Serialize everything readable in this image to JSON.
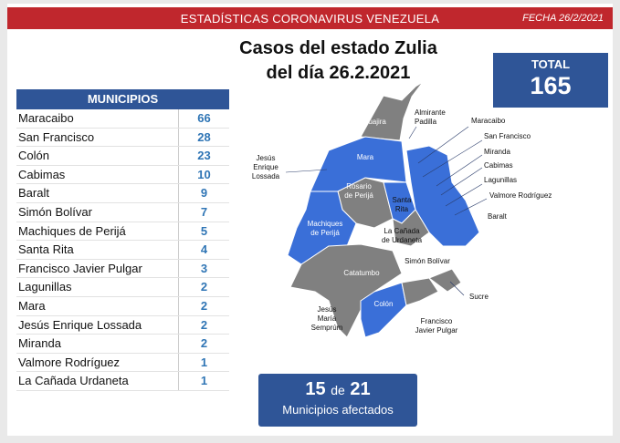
{
  "header": {
    "title": "ESTADÍSTICAS CORONAVIRUS VENEZUELA",
    "date": "FECHA 26/2/2021"
  },
  "main_title": [
    "Casos del estado Zulia",
    "del día 26.2.2021"
  ],
  "total": {
    "label": "TOTAL",
    "value": 165
  },
  "table": {
    "header": "MUNICIPIOS",
    "rows": [
      [
        "Maracaibo",
        66
      ],
      [
        "San Francisco",
        28
      ],
      [
        "Colón",
        23
      ],
      [
        "Cabimas",
        10
      ],
      [
        "Baralt",
        9
      ],
      [
        "Simón Bolívar",
        7
      ],
      [
        "Machiques de Perijá",
        5
      ],
      [
        "Santa Rita",
        4
      ],
      [
        "Francisco Javier Pulgar",
        3
      ],
      [
        "Lagunillas",
        2
      ],
      [
        "Mara",
        2
      ],
      [
        "Jesús Enrique Lossada",
        2
      ],
      [
        "Miranda",
        2
      ],
      [
        "Valmore Rodríguez",
        1
      ],
      [
        "La Cañada Urdaneta",
        1
      ]
    ]
  },
  "map": {
    "labels": [
      {
        "lines": [
          "Guajira"
        ]
      },
      {
        "lines": [
          "Almirante",
          "Padilla"
        ]
      },
      {
        "lines": [
          "Mara"
        ]
      },
      {
        "lines": [
          "Jesús",
          "Enrique",
          "Lossada"
        ]
      },
      {
        "lines": [
          "Rosario",
          "de Perijá"
        ]
      },
      {
        "lines": [
          "Santa",
          "Rita"
        ]
      },
      {
        "lines": [
          "La Cañada",
          "de Urdaneta"
        ]
      },
      {
        "lines": [
          "Machiques",
          "de Perijá"
        ]
      },
      {
        "lines": [
          "Simón Bolívar"
        ]
      },
      {
        "lines": [
          "Catatumbo"
        ]
      },
      {
        "lines": [
          "Colón"
        ]
      },
      {
        "lines": [
          "Jesús",
          "María",
          "Semprúm"
        ]
      },
      {
        "lines": [
          "Francisco",
          "Javier Pulgar"
        ]
      },
      {
        "lines": [
          "Sucre"
        ]
      },
      {
        "lines": [
          "Maracaibo"
        ]
      },
      {
        "lines": [
          "San Francisco"
        ]
      },
      {
        "lines": [
          "Miranda"
        ]
      },
      {
        "lines": [
          "Cabimas"
        ]
      },
      {
        "lines": [
          "Lagunillas"
        ]
      },
      {
        "lines": [
          "Valmore Rodríguez"
        ]
      },
      {
        "lines": [
          "Baralt"
        ]
      }
    ]
  },
  "footer": {
    "count": 15,
    "of": "de",
    "total": 21,
    "caption": "Municipios afectados"
  }
}
